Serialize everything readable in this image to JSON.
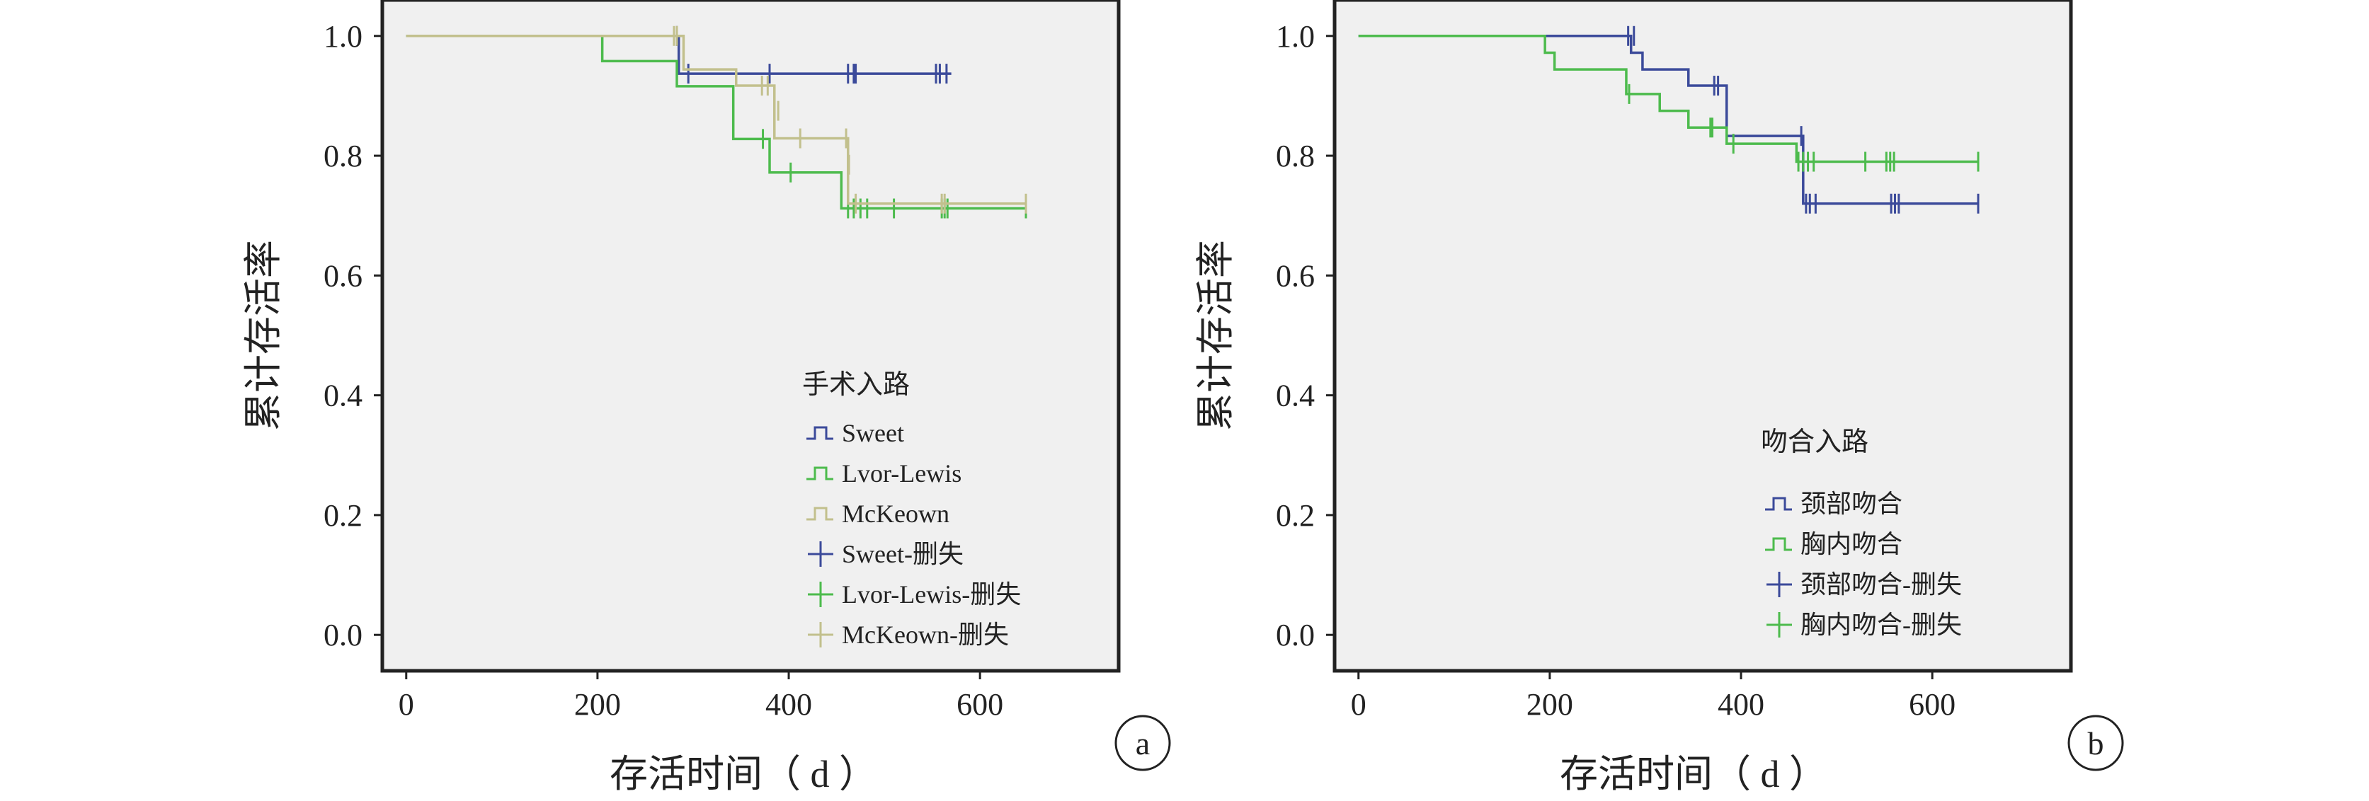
{
  "chart_data": [
    {
      "type": "line",
      "panel_label": "a",
      "xlabel": "存活时间（ d ）",
      "ylabel": "累计存活率",
      "xlim": [
        -25,
        745
      ],
      "ylim": [
        -0.06,
        1.06
      ],
      "xticks": [
        "0",
        "200",
        "400",
        "600"
      ],
      "xtick_values": [
        0,
        200,
        400,
        600
      ],
      "yticks": [
        "0.0",
        "0.2",
        "0.4",
        "0.6",
        "0.8",
        "1.0"
      ],
      "ytick_values": [
        0,
        0.2,
        0.4,
        0.6,
        0.8,
        1.0
      ],
      "background": "#f0f0f0",
      "legend_title": "手术入路",
      "legend_position": "lower-right",
      "legend": [
        {
          "label": "Sweet",
          "kind": "step",
          "color": "#3b4a9a"
        },
        {
          "label": "Lvor-Lewis",
          "kind": "step",
          "color": "#4dbb4d"
        },
        {
          "label": "McKeown",
          "kind": "step",
          "color": "#c2c08d"
        },
        {
          "label": "Sweet-删失",
          "kind": "censor",
          "color": "#3b4a9a"
        },
        {
          "label": "Lvor-Lewis-删失",
          "kind": "censor",
          "color": "#4dbb4d"
        },
        {
          "label": "McKeown-删失",
          "kind": "censor",
          "color": "#c2c08d"
        }
      ],
      "series": [
        {
          "name": "Sweet",
          "color": "#3b4a9a",
          "steps": [
            [
              0,
              1.0
            ],
            [
              285,
              0.937
            ],
            [
              570,
              0.937
            ]
          ],
          "censored": [
            [
              283,
              1.0
            ],
            [
              295,
              0.937
            ],
            [
              380,
              0.937
            ],
            [
              462,
              0.937
            ],
            [
              468,
              0.937
            ],
            [
              470,
              0.937
            ],
            [
              554,
              0.937
            ],
            [
              558,
              0.937
            ],
            [
              565,
              0.937
            ]
          ]
        },
        {
          "name": "Lvor-Lewis",
          "color": "#4dbb4d",
          "steps": [
            [
              0,
              1.0
            ],
            [
              205,
              0.958
            ],
            [
              283,
              0.916
            ],
            [
              342,
              0.828
            ],
            [
              372,
              0.828
            ],
            [
              380,
              0.772
            ],
            [
              455,
              0.712
            ],
            [
              648,
              0.712
            ]
          ],
          "censored": [
            [
              373,
              0.828
            ],
            [
              402,
              0.772
            ],
            [
              462,
              0.712
            ],
            [
              468,
              0.712
            ],
            [
              475,
              0.712
            ],
            [
              482,
              0.712
            ],
            [
              510,
              0.712
            ],
            [
              560,
              0.712
            ],
            [
              563,
              0.712
            ],
            [
              566,
              0.712
            ],
            [
              648,
              0.712
            ]
          ]
        },
        {
          "name": "McKeown",
          "color": "#c2c08d",
          "steps": [
            [
              0,
              1.0
            ],
            [
              290,
              0.944
            ],
            [
              345,
              0.917
            ],
            [
              385,
              0.829
            ],
            [
              462,
              0.72
            ],
            [
              648,
              0.72
            ]
          ],
          "censored": [
            [
              280,
              1.0
            ],
            [
              283,
              1.0
            ],
            [
              372,
              0.917
            ],
            [
              378,
              0.917
            ],
            [
              389,
              0.875
            ],
            [
              412,
              0.829
            ],
            [
              460,
              0.829
            ],
            [
              463,
              0.785
            ],
            [
              470,
              0.72
            ],
            [
              560,
              0.72
            ],
            [
              563,
              0.72
            ],
            [
              648,
              0.72
            ]
          ]
        }
      ]
    },
    {
      "type": "line",
      "panel_label": "b",
      "xlabel": "存活时间（ d ）",
      "ylabel": "累计存活率",
      "xlim": [
        -25,
        745
      ],
      "ylim": [
        -0.06,
        1.06
      ],
      "xticks": [
        "0",
        "200",
        "400",
        "600"
      ],
      "xtick_values": [
        0,
        200,
        400,
        600
      ],
      "yticks": [
        "0.0",
        "0.2",
        "0.4",
        "0.6",
        "0.8",
        "1.0"
      ],
      "ytick_values": [
        0,
        0.2,
        0.4,
        0.6,
        0.8,
        1.0
      ],
      "background": "#f0f0f0",
      "legend_title": "吻合入路",
      "legend_position": "lower-right",
      "legend": [
        {
          "label": "颈部吻合",
          "kind": "step",
          "color": "#3b4a9a"
        },
        {
          "label": "胸内吻合",
          "kind": "step",
          "color": "#4dbb4d"
        },
        {
          "label": "颈部吻合-删失",
          "kind": "censor",
          "color": "#3b4a9a"
        },
        {
          "label": "胸内吻合-删失",
          "kind": "censor",
          "color": "#4dbb4d"
        }
      ],
      "series": [
        {
          "name": "颈部吻合",
          "color": "#3b4a9a",
          "steps": [
            [
              0,
              1.0
            ],
            [
              285,
              0.972
            ],
            [
              297,
              0.944
            ],
            [
              345,
              0.917
            ],
            [
              385,
              0.833
            ],
            [
              465,
              0.72
            ],
            [
              648,
              0.72
            ]
          ],
          "censored": [
            [
              282,
              1.0
            ],
            [
              288,
              1.0
            ],
            [
              372,
              0.917
            ],
            [
              376,
              0.917
            ],
            [
              385,
              0.875
            ],
            [
              463,
              0.833
            ],
            [
              468,
              0.72
            ],
            [
              472,
              0.72
            ],
            [
              478,
              0.72
            ],
            [
              557,
              0.72
            ],
            [
              561,
              0.72
            ],
            [
              565,
              0.72
            ],
            [
              648,
              0.72
            ]
          ]
        },
        {
          "name": "胸内吻合",
          "color": "#4dbb4d",
          "steps": [
            [
              0,
              1.0
            ],
            [
              195,
              0.972
            ],
            [
              205,
              0.944
            ],
            [
              280,
              0.903
            ],
            [
              315,
              0.875
            ],
            [
              345,
              0.847
            ],
            [
              385,
              0.82
            ],
            [
              458,
              0.79
            ],
            [
              648,
              0.79
            ]
          ],
          "censored": [
            [
              283,
              0.903
            ],
            [
              368,
              0.847
            ],
            [
              370,
              0.847
            ],
            [
              392,
              0.82
            ],
            [
              460,
              0.79
            ],
            [
              465,
              0.79
            ],
            [
              470,
              0.79
            ],
            [
              476,
              0.79
            ],
            [
              530,
              0.79
            ],
            [
              552,
              0.79
            ],
            [
              556,
              0.79
            ],
            [
              560,
              0.79
            ],
            [
              648,
              0.79
            ]
          ]
        }
      ]
    }
  ]
}
